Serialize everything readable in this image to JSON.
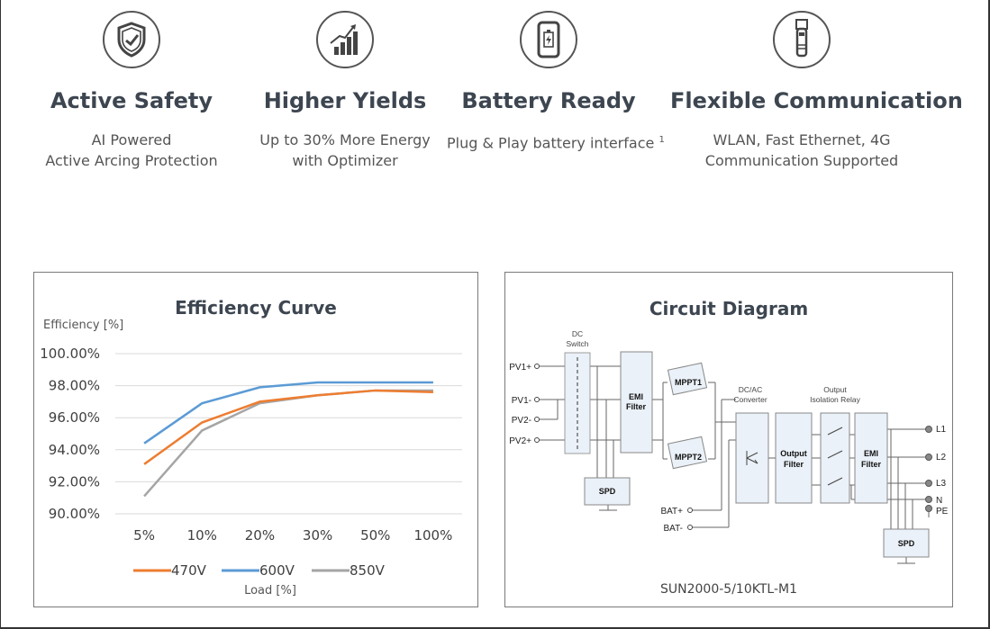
{
  "features": [
    {
      "icon": "shield-check-icon",
      "title": "Active Safety",
      "lines": [
        "AI Powered",
        "Active Arcing Protection"
      ]
    },
    {
      "icon": "growth-chart-icon",
      "title": "Higher Yields",
      "lines": [
        "Up to 30% More Energy",
        "with Optimizer"
      ]
    },
    {
      "icon": "phone-battery-icon",
      "title": "Battery Ready",
      "lines": [
        "Plug & Play battery interface",
        ""
      ],
      "sup": "1"
    },
    {
      "icon": "usb-dongle-icon",
      "title": "Flexible Communication",
      "lines": [
        "WLAN, Fast Ethernet, 4G",
        "Communication Supported"
      ]
    }
  ],
  "efficiency": {
    "title": "Efficiency Curve",
    "y_axis_label": "Efficiency [%]",
    "x_axis_label": "Load [%]"
  },
  "chart_data": {
    "type": "line",
    "title": "Efficiency Curve",
    "xlabel": "Load [%]",
    "ylabel": "Efficiency [%]",
    "categories": [
      "5%",
      "10%",
      "20%",
      "30%",
      "50%",
      "100%"
    ],
    "y_ticks": [
      "100.00%",
      "98.00%",
      "96.00%",
      "94.00%",
      "92.00%",
      "90.00%"
    ],
    "ylim": [
      90,
      100
    ],
    "grid": true,
    "legend_position": "bottom",
    "series": [
      {
        "name": "470V",
        "color": "#ed7d31",
        "values": [
          93.1,
          95.7,
          97.0,
          97.4,
          97.7,
          97.6
        ]
      },
      {
        "name": "600V",
        "color": "#5b9bd5",
        "values": [
          94.4,
          96.9,
          97.9,
          98.2,
          98.2,
          98.2
        ]
      },
      {
        "name": "850V",
        "color": "#a5a5a5",
        "values": [
          91.1,
          95.2,
          96.9,
          97.4,
          97.7,
          97.7
        ]
      }
    ]
  },
  "circuit": {
    "title": "Circuit Diagram",
    "model": "SUN2000-5/10KTL-M1",
    "dc_switch": [
      "DC",
      "Switch"
    ],
    "dcac": [
      "DC/AC",
      "Converter"
    ],
    "relay": [
      "Output",
      "Isolation Relay"
    ],
    "inputs": [
      "PV1+",
      "PV1-",
      "PV2-",
      "PV2+"
    ],
    "batteries": [
      "BAT+",
      "BAT-"
    ],
    "outputs": [
      "L1",
      "L2",
      "L3",
      "N",
      "PE"
    ],
    "spd": "SPD",
    "emi_filter": [
      "EMI",
      "Filter"
    ],
    "mppt1": "MPPT1",
    "mppt2": "MPPT2",
    "output_filter": [
      "Output",
      "Filter"
    ]
  }
}
